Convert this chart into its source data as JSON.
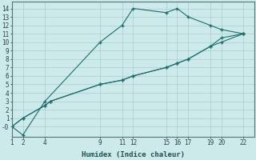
{
  "xlabel": "Humidex (Indice chaleur)",
  "bg_color": "#cceaea",
  "grid_color": "#aacccc",
  "line_color": "#1a6e6e",
  "lines": [
    {
      "x": [
        1,
        2,
        4,
        9,
        11,
        12,
        15,
        16,
        17,
        19,
        20,
        22
      ],
      "y": [
        0,
        -1,
        3,
        10,
        12,
        14,
        13.5,
        14,
        13,
        12,
        11.5,
        11
      ]
    },
    {
      "x": [
        1,
        2,
        4,
        4.5,
        9,
        11,
        12,
        15,
        16,
        17,
        19,
        20,
        22
      ],
      "y": [
        0,
        1,
        2.5,
        3,
        5,
        5.5,
        6,
        7,
        7.5,
        8,
        9.5,
        10.5,
        11
      ]
    },
    {
      "x": [
        1,
        2,
        4,
        4.5,
        9,
        11,
        12,
        15,
        16,
        17,
        19,
        20,
        22
      ],
      "y": [
        0,
        1,
        2.5,
        3,
        5,
        5.5,
        6,
        7,
        7.5,
        8,
        9.5,
        10,
        11
      ]
    }
  ],
  "xticks": [
    1,
    2,
    4,
    9,
    11,
    12,
    15,
    16,
    17,
    19,
    20,
    22
  ],
  "yticks": [
    0,
    1,
    2,
    3,
    4,
    5,
    6,
    7,
    8,
    9,
    10,
    11,
    12,
    13,
    14
  ],
  "xlim": [
    1,
    23
  ],
  "ylim": [
    -1.2,
    14.8
  ],
  "marker": "+"
}
